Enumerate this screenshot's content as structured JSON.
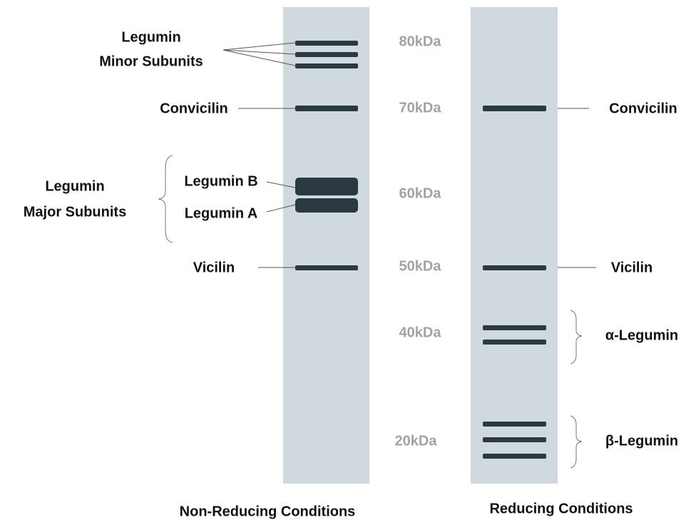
{
  "markers": [
    "80kDa",
    "70kDa",
    "60kDa",
    "50kDa",
    "40kDa",
    "20kDa"
  ],
  "non_reducing": {
    "title": "Non-Reducing Conditions",
    "minor_subunits": [
      "Legumin",
      "Minor Subunits"
    ],
    "convicilin": "Convicilin",
    "major_subunits": [
      "Legumin",
      "Major Subunits"
    ],
    "legumin_b": "Legumin B",
    "legumin_a": "Legumin A",
    "vicilin": "Vicilin"
  },
  "reducing": {
    "title": "Reducing Conditions",
    "convicilin": "Convicilin",
    "vicilin": "Vicilin",
    "alpha_legumin": "α-Legumin",
    "beta_legumin": "β-Legumin"
  }
}
